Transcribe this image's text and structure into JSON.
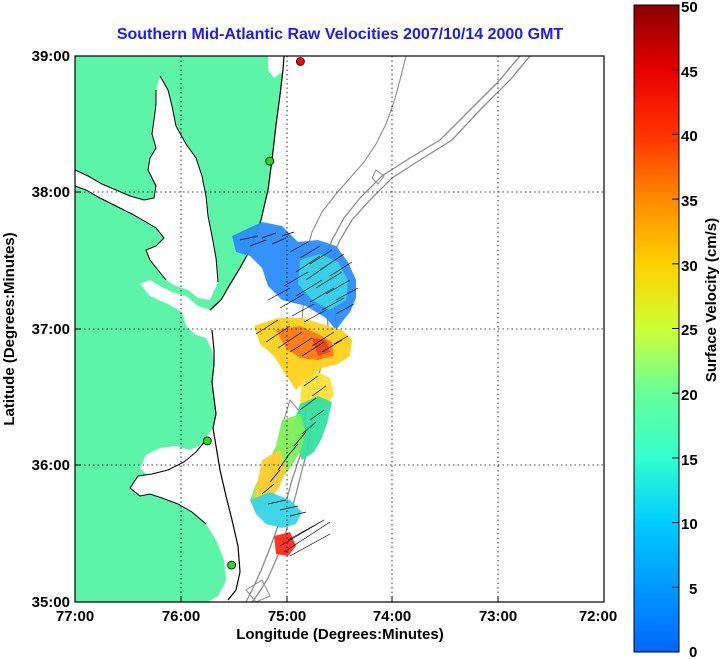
{
  "title": "Southern Mid-Atlantic Raw Velocities 2007/10/14 2000 GMT",
  "x_axis": {
    "label": "Longitude (Degrees:Minutes)",
    "ticks": [
      "77:00",
      "76:00",
      "75:00",
      "74:00",
      "73:00",
      "72:00"
    ]
  },
  "y_axis": {
    "label": "Latitude (Degrees:Minutes)",
    "ticks": [
      "39:00",
      "38:00",
      "37:00",
      "36:00",
      "35:00"
    ]
  },
  "colorbar": {
    "label": "Surface Velocity (cm/s)",
    "ticks": [
      "50",
      "45",
      "40",
      "35",
      "30",
      "25",
      "20",
      "15",
      "10",
      "5",
      "0"
    ],
    "min": 0,
    "max": 50
  },
  "colors": {
    "land": "#5cf5a8",
    "water": "#ffffff",
    "coastline": "#000000",
    "bathymetry": "#8c8c8c",
    "title": "#1a1aff",
    "station_green": "#22dd22",
    "station_red": "#ff0000"
  },
  "map": {
    "lon_range": [
      -77,
      -72
    ],
    "lat_range": [
      35,
      39
    ],
    "grid": "dotted",
    "stations": [
      {
        "lon": -74.87,
        "lat": 38.96,
        "color": "red"
      },
      {
        "lon": -75.16,
        "lat": 38.23,
        "color": "green"
      },
      {
        "lon": -75.75,
        "lat": 36.18,
        "color": "green"
      },
      {
        "lon": -75.52,
        "lat": 35.27,
        "color": "green"
      }
    ]
  }
}
